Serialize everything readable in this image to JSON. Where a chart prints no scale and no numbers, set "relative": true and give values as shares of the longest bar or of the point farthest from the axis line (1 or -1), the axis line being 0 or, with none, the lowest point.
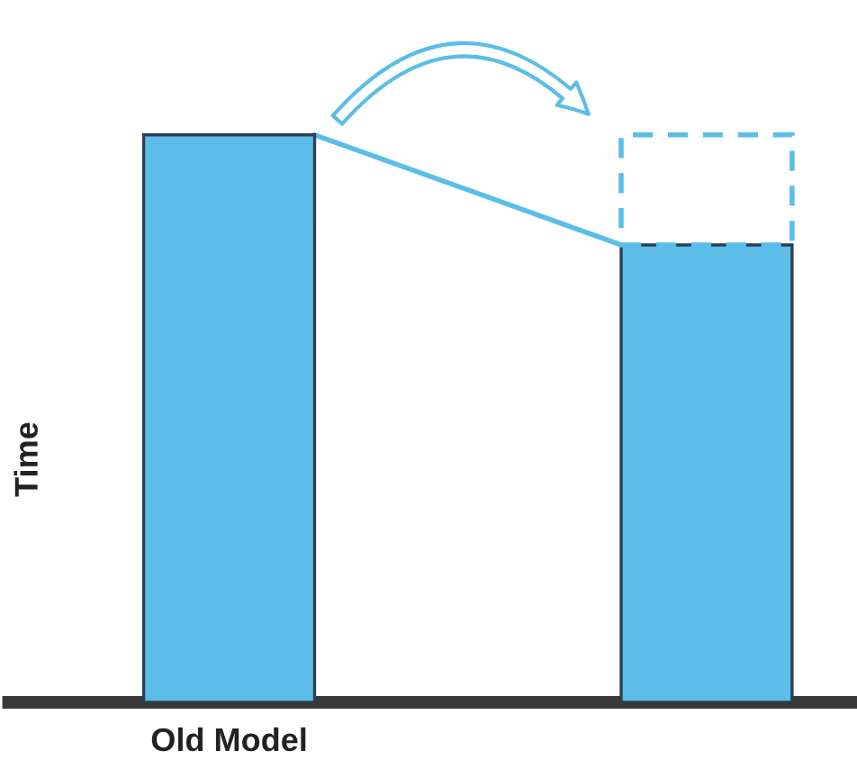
{
  "chart_data": {
    "type": "bar",
    "ylabel": "Time",
    "categories": [
      "Old Model",
      null
    ],
    "values": [
      1,
      0.806
    ],
    "color": "#5bbde8",
    "relative": true,
    "grid": false,
    "legend": false
  }
}
